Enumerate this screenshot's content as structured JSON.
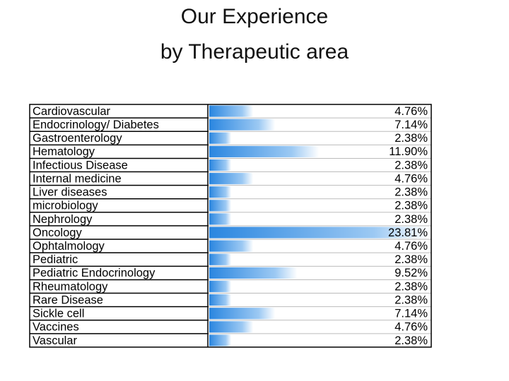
{
  "chart_data": {
    "type": "bar",
    "orientation": "horizontal",
    "title": [
      "Our Experience",
      "by Therapeutic area"
    ],
    "color": "#2a86e0",
    "categories": [
      "Cardiovascular",
      "Endocrinology/ Diabetes",
      "Gastroenterology",
      "Hematology",
      "Infectious Disease",
      "Internal medicine",
      "Liver diseases",
      "microbiology",
      "Nephrology",
      "Oncology",
      "Ophtalmology",
      "Pediatric",
      "Pediatric Endocrinology",
      "Rheumatology",
      "Rare Disease",
      "Sickle cell",
      "Vaccines",
      "Vascular"
    ],
    "values": [
      4.76,
      7.14,
      2.38,
      11.9,
      2.38,
      4.76,
      2.38,
      2.38,
      2.38,
      23.81,
      4.76,
      2.38,
      9.52,
      2.38,
      2.38,
      7.14,
      4.76,
      2.38
    ],
    "value_labels": [
      "4.76%",
      "7.14%",
      "2.38%",
      "11.90%",
      "2.38%",
      "4.76%",
      "2.38%",
      "2.38%",
      "2.38%",
      "23.81%",
      "4.76%",
      "2.38%",
      "9.52%",
      "2.38%",
      "2.38%",
      "7.14%",
      "4.76%",
      "2.38%"
    ]
  }
}
